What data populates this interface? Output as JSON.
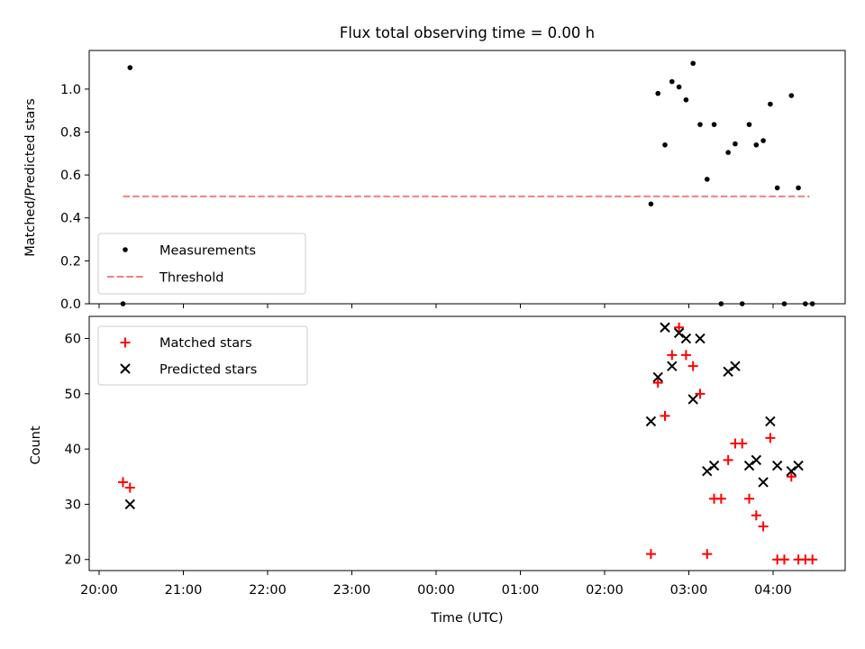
{
  "figure": {
    "title": "Flux total observing time = 0.00 h",
    "xlabel": "Time (UTC)"
  },
  "chart_data": [
    {
      "type": "scatter",
      "title": "Flux total observing time = 0.00 h",
      "ylabel": "Matched/Predicted stars",
      "xlabel": "",
      "ylim": [
        0,
        1.18
      ],
      "yticks": [
        "0.0",
        "0.2",
        "0.4",
        "0.6",
        "0.8",
        "1.0"
      ],
      "legend_position": "lower-left",
      "series": [
        {
          "name": "Measurements",
          "kind": "scatter",
          "marker": "dot",
          "color": "#000000",
          "points": [
            {
              "x": "20:17",
              "y": 0.0
            },
            {
              "x": "20:22",
              "y": 1.1
            },
            {
              "x": "02:33",
              "y": 0.465
            },
            {
              "x": "02:38",
              "y": 0.98
            },
            {
              "x": "02:43",
              "y": 0.74
            },
            {
              "x": "02:48",
              "y": 1.035
            },
            {
              "x": "02:53",
              "y": 1.01
            },
            {
              "x": "02:58",
              "y": 0.95
            },
            {
              "x": "03:03",
              "y": 1.12
            },
            {
              "x": "03:08",
              "y": 0.835
            },
            {
              "x": "03:13",
              "y": 0.58
            },
            {
              "x": "03:18",
              "y": 0.835
            },
            {
              "x": "03:23",
              "y": 0.0
            },
            {
              "x": "03:28",
              "y": 0.705
            },
            {
              "x": "03:33",
              "y": 0.745
            },
            {
              "x": "03:38",
              "y": 0.0
            },
            {
              "x": "03:43",
              "y": 0.835
            },
            {
              "x": "03:48",
              "y": 0.74
            },
            {
              "x": "03:53",
              "y": 0.76
            },
            {
              "x": "03:58",
              "y": 0.93
            },
            {
              "x": "04:03",
              "y": 0.54
            },
            {
              "x": "04:08",
              "y": 0.0
            },
            {
              "x": "04:13",
              "y": 0.97
            },
            {
              "x": "04:18",
              "y": 0.54
            },
            {
              "x": "04:23",
              "y": 0.0
            },
            {
              "x": "04:28",
              "y": 0.0
            }
          ]
        },
        {
          "name": "Threshold",
          "kind": "line",
          "style": "dashed",
          "color": "#f08080",
          "points": [
            {
              "x": "20:17",
              "y": 0.5
            },
            {
              "x": "04:26",
              "y": 0.5
            }
          ]
        }
      ]
    },
    {
      "type": "scatter",
      "title": "",
      "ylabel": "Count",
      "xlabel": "Time (UTC)",
      "ylim": [
        18,
        64
      ],
      "yticks": [
        "20",
        "30",
        "40",
        "50",
        "60"
      ],
      "xticks": [
        "20:00",
        "21:00",
        "22:00",
        "23:00",
        "00:00",
        "01:00",
        "02:00",
        "03:00",
        "04:00"
      ],
      "legend_position": "upper-left",
      "series": [
        {
          "name": "Matched stars",
          "kind": "scatter",
          "marker": "plus",
          "color": "#ff0000",
          "points": [
            {
              "x": "20:17",
              "y": 34
            },
            {
              "x": "20:22",
              "y": 33
            },
            {
              "x": "02:33",
              "y": 21
            },
            {
              "x": "02:38",
              "y": 52
            },
            {
              "x": "02:43",
              "y": 46
            },
            {
              "x": "02:48",
              "y": 57
            },
            {
              "x": "02:53",
              "y": 62
            },
            {
              "x": "02:58",
              "y": 57
            },
            {
              "x": "03:03",
              "y": 55
            },
            {
              "x": "03:08",
              "y": 50
            },
            {
              "x": "03:13",
              "y": 21
            },
            {
              "x": "03:18",
              "y": 31
            },
            {
              "x": "03:23",
              "y": 31
            },
            {
              "x": "03:28",
              "y": 38
            },
            {
              "x": "03:33",
              "y": 41
            },
            {
              "x": "03:38",
              "y": 41
            },
            {
              "x": "03:43",
              "y": 31
            },
            {
              "x": "03:48",
              "y": 28
            },
            {
              "x": "03:53",
              "y": 26
            },
            {
              "x": "03:58",
              "y": 42
            },
            {
              "x": "04:03",
              "y": 20
            },
            {
              "x": "04:08",
              "y": 20
            },
            {
              "x": "04:13",
              "y": 35
            },
            {
              "x": "04:18",
              "y": 20
            },
            {
              "x": "04:23",
              "y": 20
            },
            {
              "x": "04:28",
              "y": 20
            }
          ]
        },
        {
          "name": "Predicted stars",
          "kind": "scatter",
          "marker": "x",
          "color": "#000000",
          "points": [
            {
              "x": "20:22",
              "y": 30
            },
            {
              "x": "02:33",
              "y": 45
            },
            {
              "x": "02:38",
              "y": 53
            },
            {
              "x": "02:43",
              "y": 62
            },
            {
              "x": "02:48",
              "y": 55
            },
            {
              "x": "02:53",
              "y": 61
            },
            {
              "x": "02:58",
              "y": 60
            },
            {
              "x": "03:03",
              "y": 49
            },
            {
              "x": "03:08",
              "y": 60
            },
            {
              "x": "03:13",
              "y": 36
            },
            {
              "x": "03:18",
              "y": 37
            },
            {
              "x": "03:28",
              "y": 54
            },
            {
              "x": "03:33",
              "y": 55
            },
            {
              "x": "03:43",
              "y": 37
            },
            {
              "x": "03:48",
              "y": 38
            },
            {
              "x": "03:53",
              "y": 34
            },
            {
              "x": "03:58",
              "y": 45
            },
            {
              "x": "04:03",
              "y": 37
            },
            {
              "x": "04:13",
              "y": 36
            },
            {
              "x": "04:18",
              "y": 37
            }
          ]
        }
      ]
    }
  ]
}
